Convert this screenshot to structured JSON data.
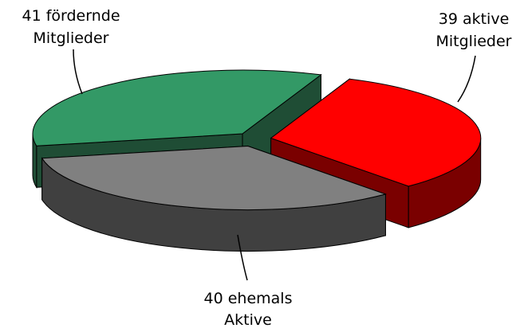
{
  "chart_data": {
    "type": "pie",
    "three_d": true,
    "exploded": true,
    "legend": "none",
    "slices": [
      {
        "count": 39,
        "label_lines": [
          "39 aktive",
          "Mitglieder"
        ],
        "color": "#ff0000",
        "side_color": "#7a0000"
      },
      {
        "count": 40,
        "label_lines": [
          "40 ehemals",
          "Aktive"
        ],
        "color": "#808080",
        "side_color": "#404040"
      },
      {
        "count": 41,
        "label_lines": [
          "41 fördernde",
          "Mitglieder"
        ],
        "color": "#339966",
        "side_color": "#1f4d35"
      }
    ]
  }
}
